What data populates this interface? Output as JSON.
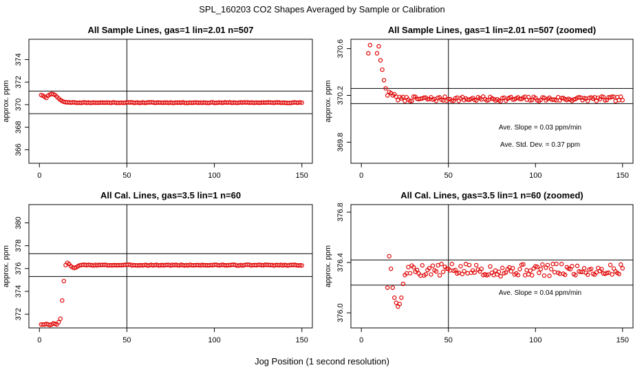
{
  "figure": {
    "title": "SPL_160203  CO2 Shapes Averaged by Sample or Calibration",
    "xlabel": "Jog Position (1 second resolution)"
  },
  "chart_data": [
    {
      "id": "p1",
      "type": "scatter",
      "title": "All Sample Lines, gas=1 lin=2.01 n=507",
      "ylabel": "approx. ppm",
      "xlim": [
        -6,
        156
      ],
      "ylim": [
        364.8,
        375.8
      ],
      "xticks": [
        0,
        50,
        100,
        150
      ],
      "yticks": [
        366,
        368,
        370,
        372,
        374
      ],
      "vline": 50,
      "hlines": [
        369.2,
        371.2
      ],
      "point_color": "#e00000",
      "series": [
        {
          "x": [
            1,
            2,
            3,
            4,
            5,
            6,
            7,
            8,
            9,
            10,
            11,
            12,
            13,
            14,
            15,
            16,
            17,
            18,
            19,
            20
          ],
          "y": [
            370.85,
            370.8,
            370.7,
            370.6,
            370.8,
            370.9,
            370.95,
            370.92,
            370.85,
            370.7,
            370.55,
            370.42,
            370.32,
            370.25,
            370.22,
            370.2,
            370.2,
            370.18,
            370.2,
            370.2
          ],
          "tail": {
            "from": 21,
            "to": 150,
            "value": 370.18,
            "jitter": 0.03,
            "seed": 11
          }
        }
      ]
    },
    {
      "id": "p2",
      "type": "scatter",
      "title": "All Sample Lines, gas=1 lin=2.01 n=507 (zoomed)",
      "ylabel": "approx. ppm",
      "xlim": [
        -6,
        156
      ],
      "ylim": [
        369.62,
        370.68
      ],
      "xticks": [
        0,
        50,
        100,
        150
      ],
      "yticks": [
        369.8,
        370.2,
        370.6
      ],
      "vline": 50,
      "hlines": [
        370.13,
        370.26
      ],
      "point_color": "#e00000",
      "annotations": [
        "Ave. Slope =  0.03  ppm/min",
        "Ave. Std. Dev. =  0.37  ppm"
      ],
      "series": [
        {
          "x": [
            4,
            5,
            9,
            10,
            11,
            12,
            13,
            14,
            15,
            16,
            17,
            18,
            19,
            20
          ],
          "y": [
            370.56,
            370.63,
            370.56,
            370.62,
            370.5,
            370.42,
            370.33,
            370.26,
            370.2,
            370.23,
            370.22,
            370.2,
            370.21,
            370.19
          ],
          "tail": {
            "from": 21,
            "to": 150,
            "value": 370.17,
            "jitter": 0.02,
            "seed": 7
          }
        }
      ]
    },
    {
      "id": "p3",
      "type": "scatter",
      "title": "All Cal. Lines, gas=3.5 lin=1 n=60",
      "ylabel": "approx. ppm",
      "xlim": [
        -6,
        156
      ],
      "ylim": [
        370.8,
        381.6
      ],
      "xticks": [
        0,
        50,
        100,
        150
      ],
      "yticks": [
        372,
        374,
        376,
        378,
        380
      ],
      "vline": 50,
      "hlines": [
        375.3,
        377.3
      ],
      "point_color": "#e00000",
      "series": [
        {
          "x": [
            1,
            2,
            3,
            4,
            5,
            6,
            7,
            8,
            9,
            10,
            11,
            12,
            13,
            14,
            15,
            16,
            17,
            18,
            19,
            20,
            21,
            22
          ],
          "y": [
            371.1,
            371.1,
            371.1,
            371.15,
            371.1,
            371.05,
            371.1,
            371.2,
            371.15,
            371.1,
            371.3,
            371.6,
            373.2,
            374.9,
            376.3,
            376.5,
            376.4,
            376.2,
            376.1,
            376.05,
            376.1,
            376.2
          ],
          "tail": {
            "from": 23,
            "to": 150,
            "value": 376.3,
            "jitter": 0.04,
            "seed": 3
          }
        }
      ]
    },
    {
      "id": "p4",
      "type": "scatter",
      "title": "All Cal. Lines, gas=3.5 lin=1 n=60 (zoomed)",
      "ylabel": "approx. ppm",
      "xlim": [
        -6,
        156
      ],
      "ylim": [
        375.88,
        376.86
      ],
      "xticks": [
        0,
        50,
        100,
        150
      ],
      "yticks": [
        376.0,
        376.4,
        376.8
      ],
      "vline": 50,
      "hlines": [
        376.22,
        376.42
      ],
      "point_color": "#e00000",
      "annotations": [
        "Ave. Slope =  0.04  ppm/min"
      ],
      "series": [
        {
          "x": [
            15,
            16,
            17,
            18,
            19,
            20,
            21,
            22,
            23,
            24,
            25
          ],
          "y": [
            376.2,
            376.45,
            376.35,
            376.2,
            376.12,
            376.08,
            376.05,
            376.07,
            376.12,
            376.23,
            376.3
          ],
          "tail": {
            "from": 26,
            "to": 150,
            "value": 376.34,
            "jitter": 0.05,
            "seed": 5
          }
        }
      ]
    }
  ]
}
